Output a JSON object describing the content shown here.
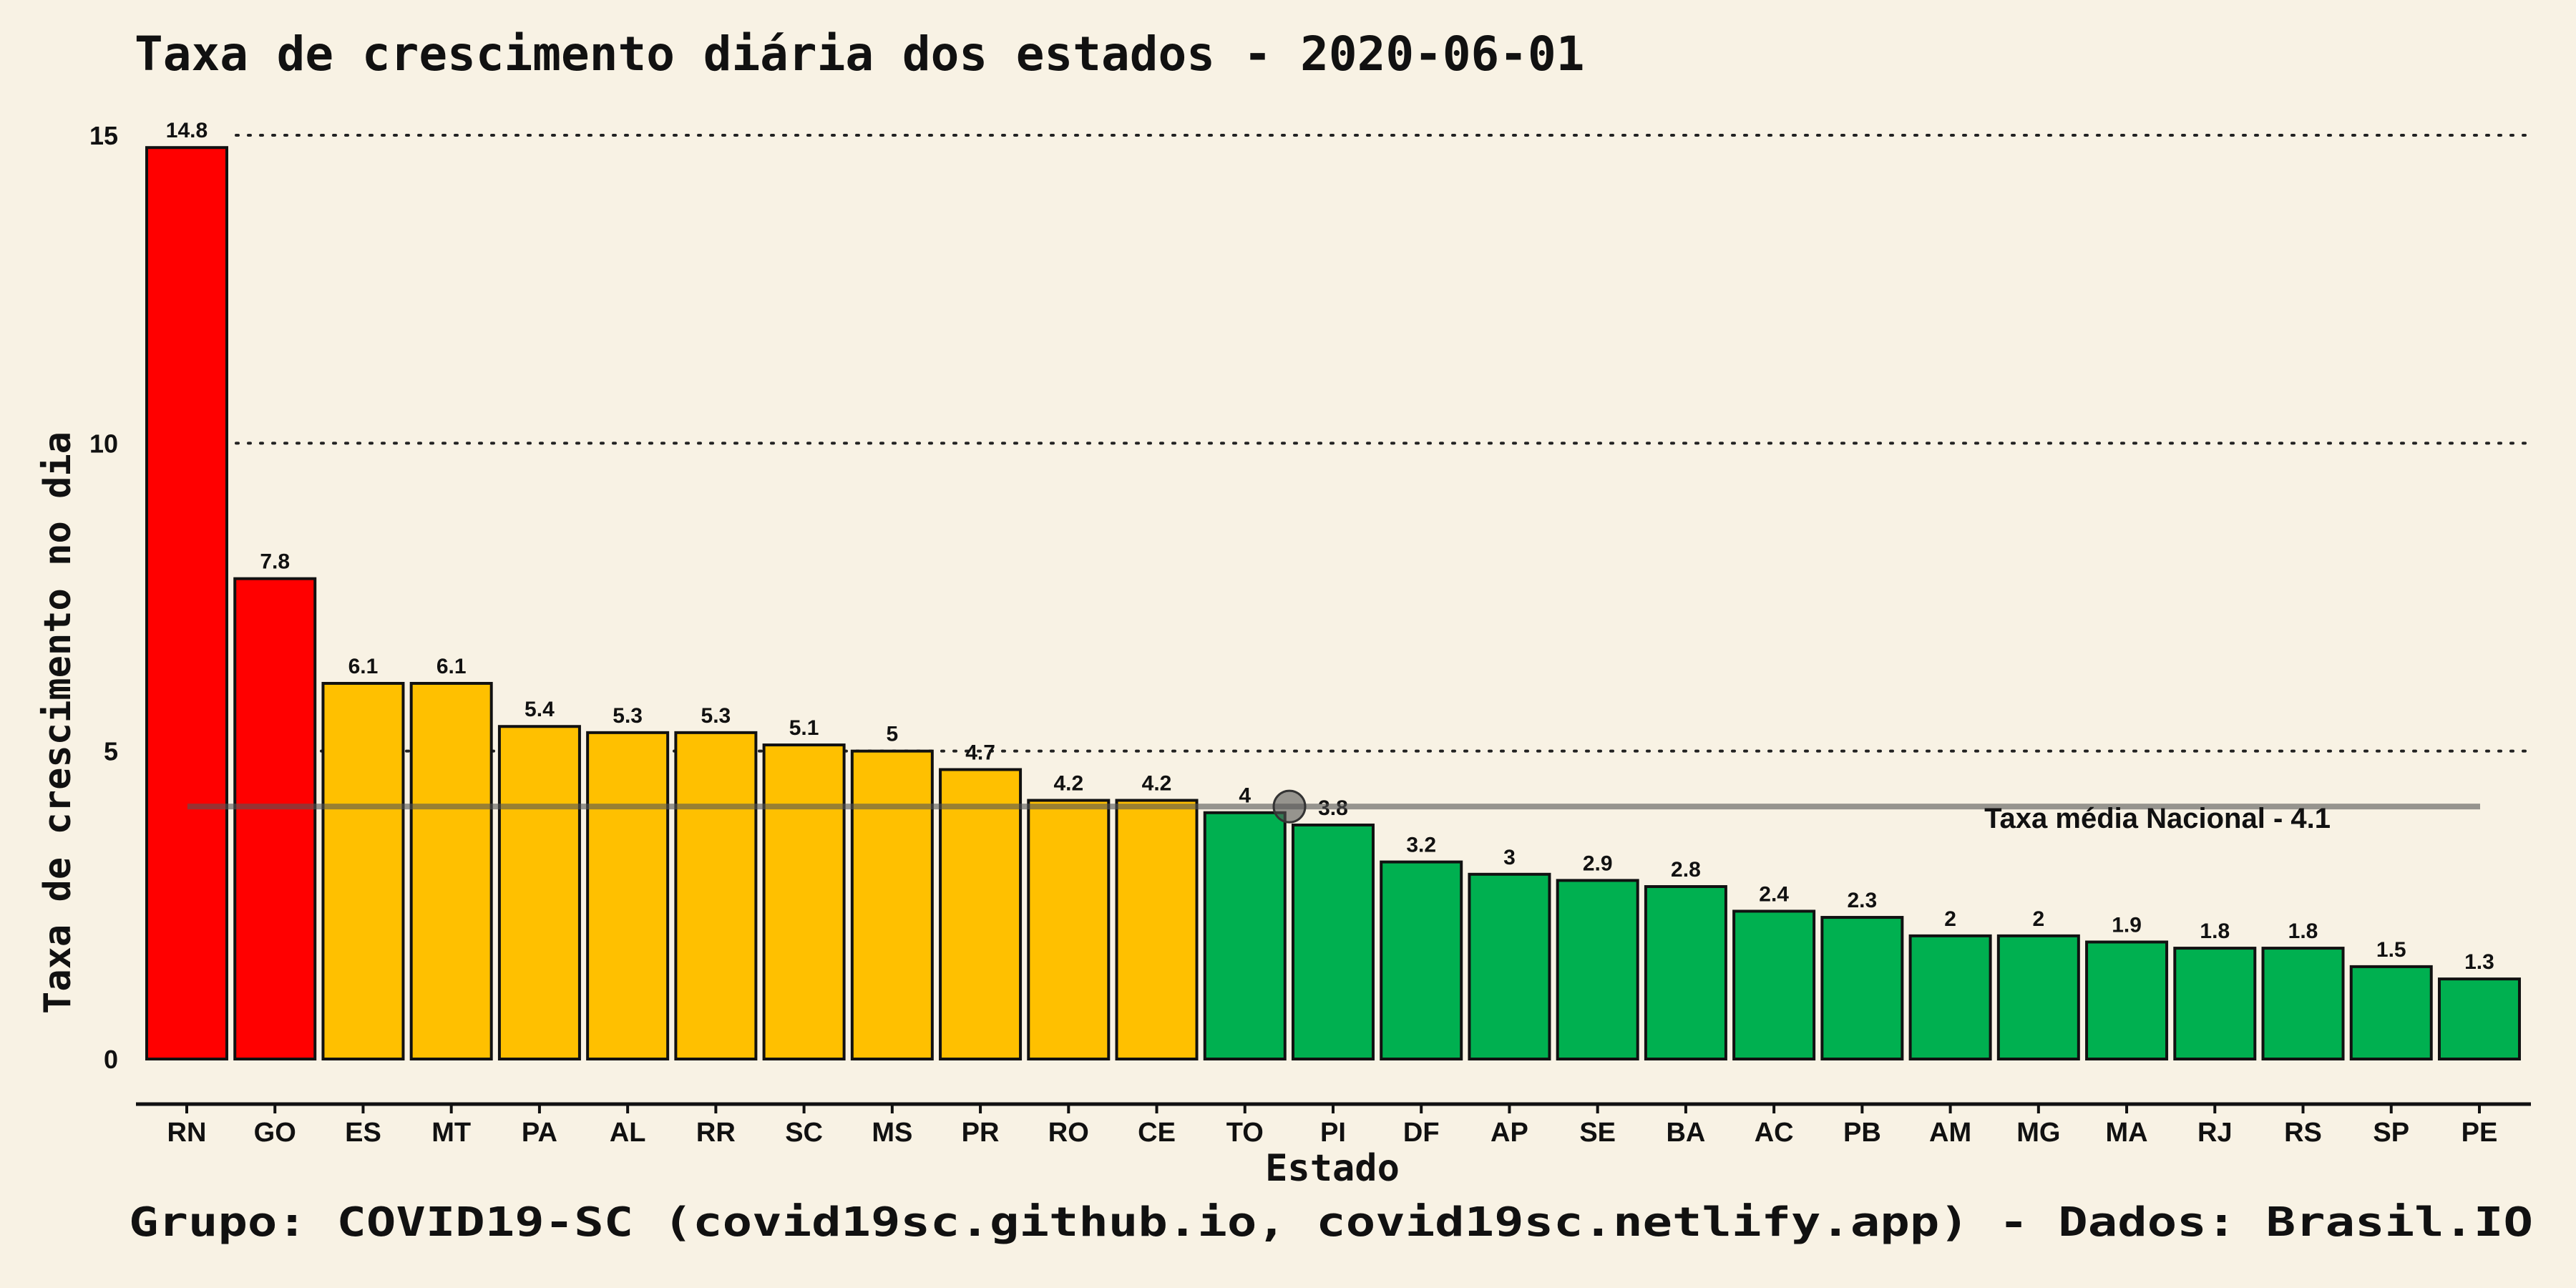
{
  "chart_data": {
    "type": "bar",
    "title": "Taxa de crescimento diária dos estados - 2020-06-01",
    "xlabel": "Estado",
    "ylabel": "Taxa de crescimento no dia",
    "ylim": [
      0,
      15
    ],
    "yticks": [
      "0",
      "5",
      "10",
      "15"
    ],
    "grid": "horizontal dotted",
    "categories": [
      "RN",
      "GO",
      "ES",
      "MT",
      "PA",
      "AL",
      "RR",
      "SC",
      "MS",
      "PR",
      "RO",
      "CE",
      "TO",
      "PI",
      "DF",
      "AP",
      "SE",
      "BA",
      "AC",
      "PB",
      "AM",
      "MG",
      "MA",
      "RJ",
      "RS",
      "SP",
      "PE"
    ],
    "values": [
      14.8,
      7.8,
      6.1,
      6.1,
      5.4,
      5.3,
      5.3,
      5.1,
      5,
      4.7,
      4.2,
      4.2,
      4,
      3.8,
      3.2,
      3,
      2.9,
      2.8,
      2.4,
      2.3,
      2,
      2,
      1.9,
      1.8,
      1.8,
      1.5,
      1.3
    ],
    "value_labels": [
      "14.8",
      "7.8",
      "6.1",
      "6.1",
      "5.4",
      "5.3",
      "5.3",
      "5.1",
      "5",
      "4.7",
      "4.2",
      "4.2",
      "4",
      "3.8",
      "3.2",
      "3",
      "2.9",
      "2.8",
      "2.4",
      "2.3",
      "2",
      "2",
      "1.9",
      "1.8",
      "1.8",
      "1.5",
      "1.3"
    ],
    "bar_color_groups": [
      "red",
      "red",
      "yellow",
      "yellow",
      "yellow",
      "yellow",
      "yellow",
      "yellow",
      "yellow",
      "yellow",
      "yellow",
      "yellow",
      "green",
      "green",
      "green",
      "green",
      "green",
      "green",
      "green",
      "green",
      "green",
      "green",
      "green",
      "green",
      "green",
      "green",
      "green"
    ],
    "colors": {
      "red": "#ff0000",
      "yellow": "#ffc000",
      "green": "#00b050",
      "background": "#f8f2e4",
      "reference_line": "#555555"
    },
    "reference_line": {
      "value": 4.1,
      "label": "Taxa média Nacional -  4.1"
    },
    "caption": "Grupo: COVID19-SC (covid19sc.github.io, covid19sc.netlify.app)   -  Dados: Brasil.IO"
  }
}
